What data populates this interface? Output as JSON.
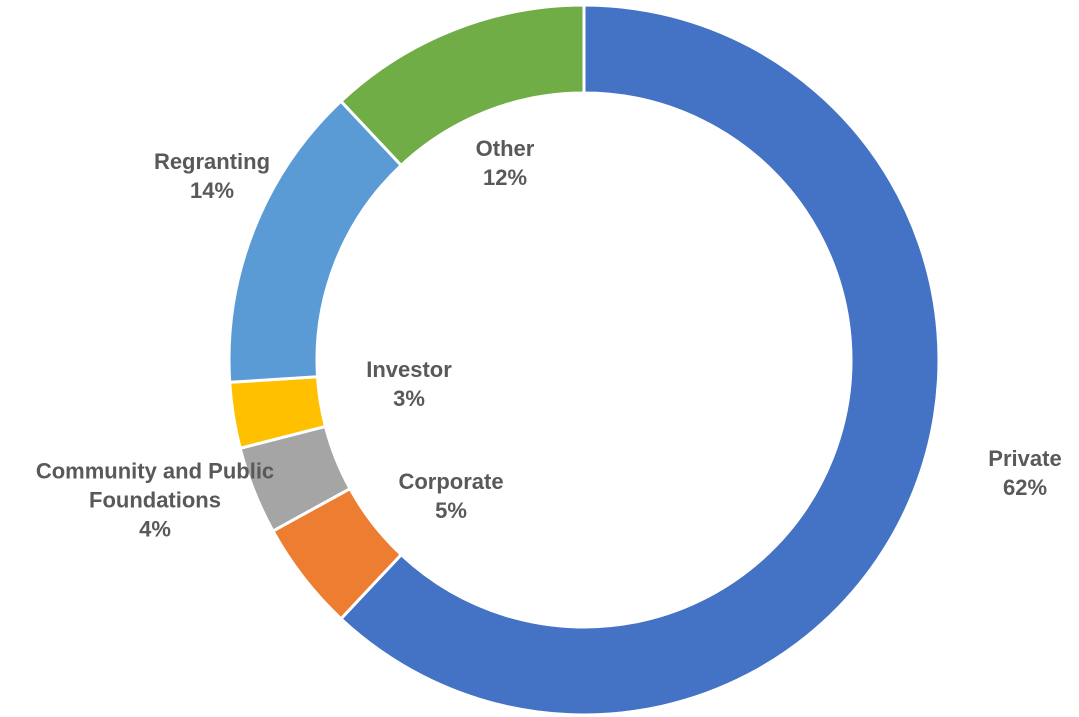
{
  "chart_data": {
    "type": "pie",
    "categories": [
      "Private",
      "Corporate",
      "Community and Public Foundations",
      "Investor",
      "Regranting",
      "Other"
    ],
    "values": [
      62,
      5,
      4,
      3,
      14,
      12
    ],
    "value_labels": [
      "62%",
      "5%",
      "4%",
      "3%",
      "14%",
      "12%"
    ],
    "colors": [
      "#4472c4",
      "#ed7d31",
      "#a5a5a5",
      "#ffc000",
      "#5b9bd5",
      "#70ad47"
    ]
  }
}
